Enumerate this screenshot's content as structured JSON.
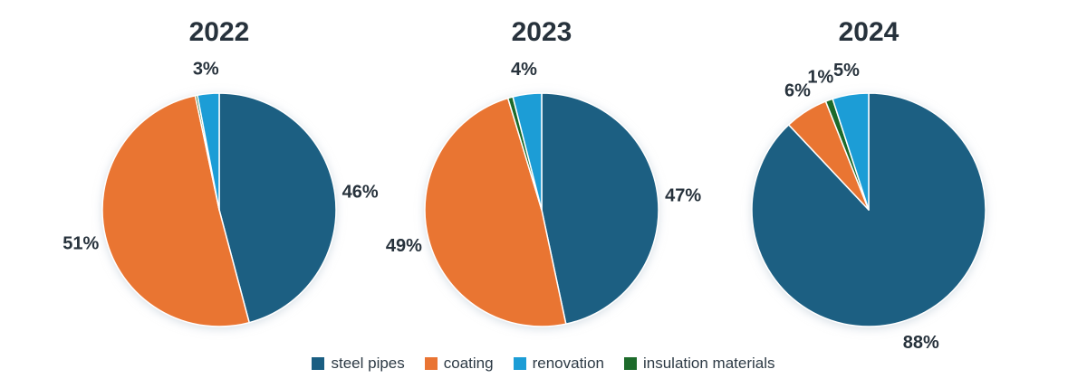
{
  "chart_data": [
    {
      "type": "pie",
      "title": "2022",
      "slices": [
        {
          "category": "steel pipes",
          "value": 46,
          "label": "46%"
        },
        {
          "category": "coating",
          "value": 51,
          "label": "51%"
        },
        {
          "category": "insulation materials",
          "value": 0.3,
          "label": ""
        },
        {
          "category": "renovation",
          "value": 3,
          "label": "3%"
        }
      ]
    },
    {
      "type": "pie",
      "title": "2023",
      "slices": [
        {
          "category": "steel pipes",
          "value": 47,
          "label": "47%"
        },
        {
          "category": "coating",
          "value": 49,
          "label": "49%"
        },
        {
          "category": "insulation materials",
          "value": 0.7,
          "label": ""
        },
        {
          "category": "renovation",
          "value": 4,
          "label": "4%"
        }
      ]
    },
    {
      "type": "pie",
      "title": "2024",
      "slices": [
        {
          "category": "steel pipes",
          "value": 88,
          "label": "88%"
        },
        {
          "category": "coating",
          "value": 6,
          "label": "6%"
        },
        {
          "category": "insulation materials",
          "value": 1,
          "label": "1%"
        },
        {
          "category": "renovation",
          "value": 5,
          "label": "5%"
        }
      ]
    }
  ],
  "legend": {
    "placement": "bottom",
    "items": [
      {
        "name": "steel pipes",
        "color": "#1a5e82"
      },
      {
        "name": "coating",
        "color": "#e97433"
      },
      {
        "name": "renovation",
        "color": "#1c9dd6"
      },
      {
        "name": "insulation materials",
        "color": "#1d6b2b"
      }
    ]
  }
}
